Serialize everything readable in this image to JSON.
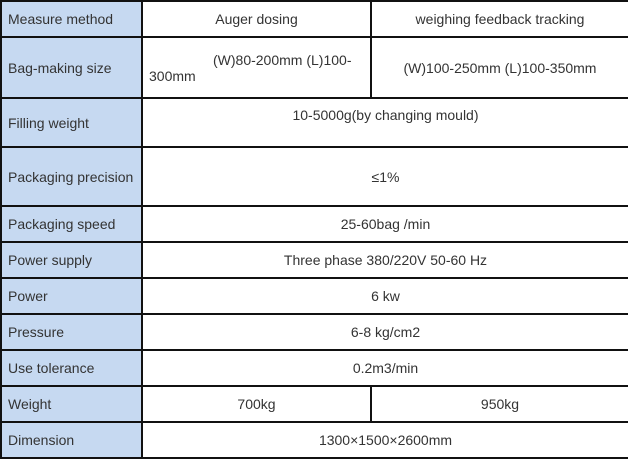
{
  "spec_table": {
    "rows": [
      {
        "label": "Measure method",
        "values": [
          "Auger dosing",
          "weighing feedback tracking"
        ]
      },
      {
        "label": "Bag-making size",
        "values": [
          "(W)80-200mm   (L)100-300mm",
          "(W)100-250mm (L)100-350mm"
        ]
      },
      {
        "label": "Filling weight",
        "values": [
          "10-5000g(by changing mould)"
        ]
      },
      {
        "label": "Packaging precision",
        "values": [
          "≤1%"
        ]
      },
      {
        "label": "Packaging speed",
        "values": [
          "25-60bag /min"
        ]
      },
      {
        "label": "Power supply",
        "values": [
          "Three phase 380/220V 50-60 Hz"
        ]
      },
      {
        "label": "Power",
        "values": [
          "6 kw"
        ]
      },
      {
        "label": "Pressure",
        "values": [
          "6-8 kg/cm2"
        ]
      },
      {
        "label": "Use tolerance",
        "values": [
          "0.2m3/min"
        ]
      },
      {
        "label": "Weight",
        "values": [
          "700kg",
          "950kg"
        ]
      },
      {
        "label": "Dimension",
        "values": [
          "1300×1500×2600mm"
        ]
      }
    ]
  },
  "colors": {
    "label_bg": "#c6d9f1",
    "border": "#111111"
  }
}
